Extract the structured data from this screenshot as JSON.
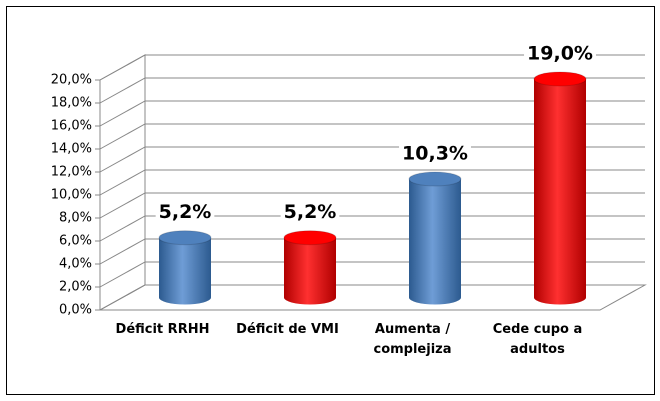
{
  "chart_data": {
    "type": "bar3d",
    "categories": [
      "Déficit RRHH",
      "Déficit de VMI",
      "Aumenta / complejiza",
      "Cede cupo a adultos"
    ],
    "values": [
      5.2,
      5.2,
      10.3,
      19.0
    ],
    "value_labels": [
      "5,2%",
      "5,2%",
      "10,3%",
      "19,0%"
    ],
    "colors": [
      "#4f81bd",
      "#ff0000",
      "#4f81bd",
      "#ff0000"
    ],
    "ylim": [
      0,
      20
    ],
    "yticks": [
      {
        "value": 0,
        "label": "0,0%"
      },
      {
        "value": 2,
        "label": "2,0%"
      },
      {
        "value": 4,
        "label": "4,0%"
      },
      {
        "value": 6,
        "label": "6,0%"
      },
      {
        "value": 8,
        "label": "8,0%"
      },
      {
        "value": 10,
        "label": "10,0%"
      },
      {
        "value": 12,
        "label": "12,0%"
      },
      {
        "value": 14,
        "label": "14,0%"
      },
      {
        "value": 16,
        "label": "16,0%"
      },
      {
        "value": 18,
        "label": "18,0%"
      },
      {
        "value": 20,
        "label": "20,0%"
      }
    ],
    "grid": true
  }
}
